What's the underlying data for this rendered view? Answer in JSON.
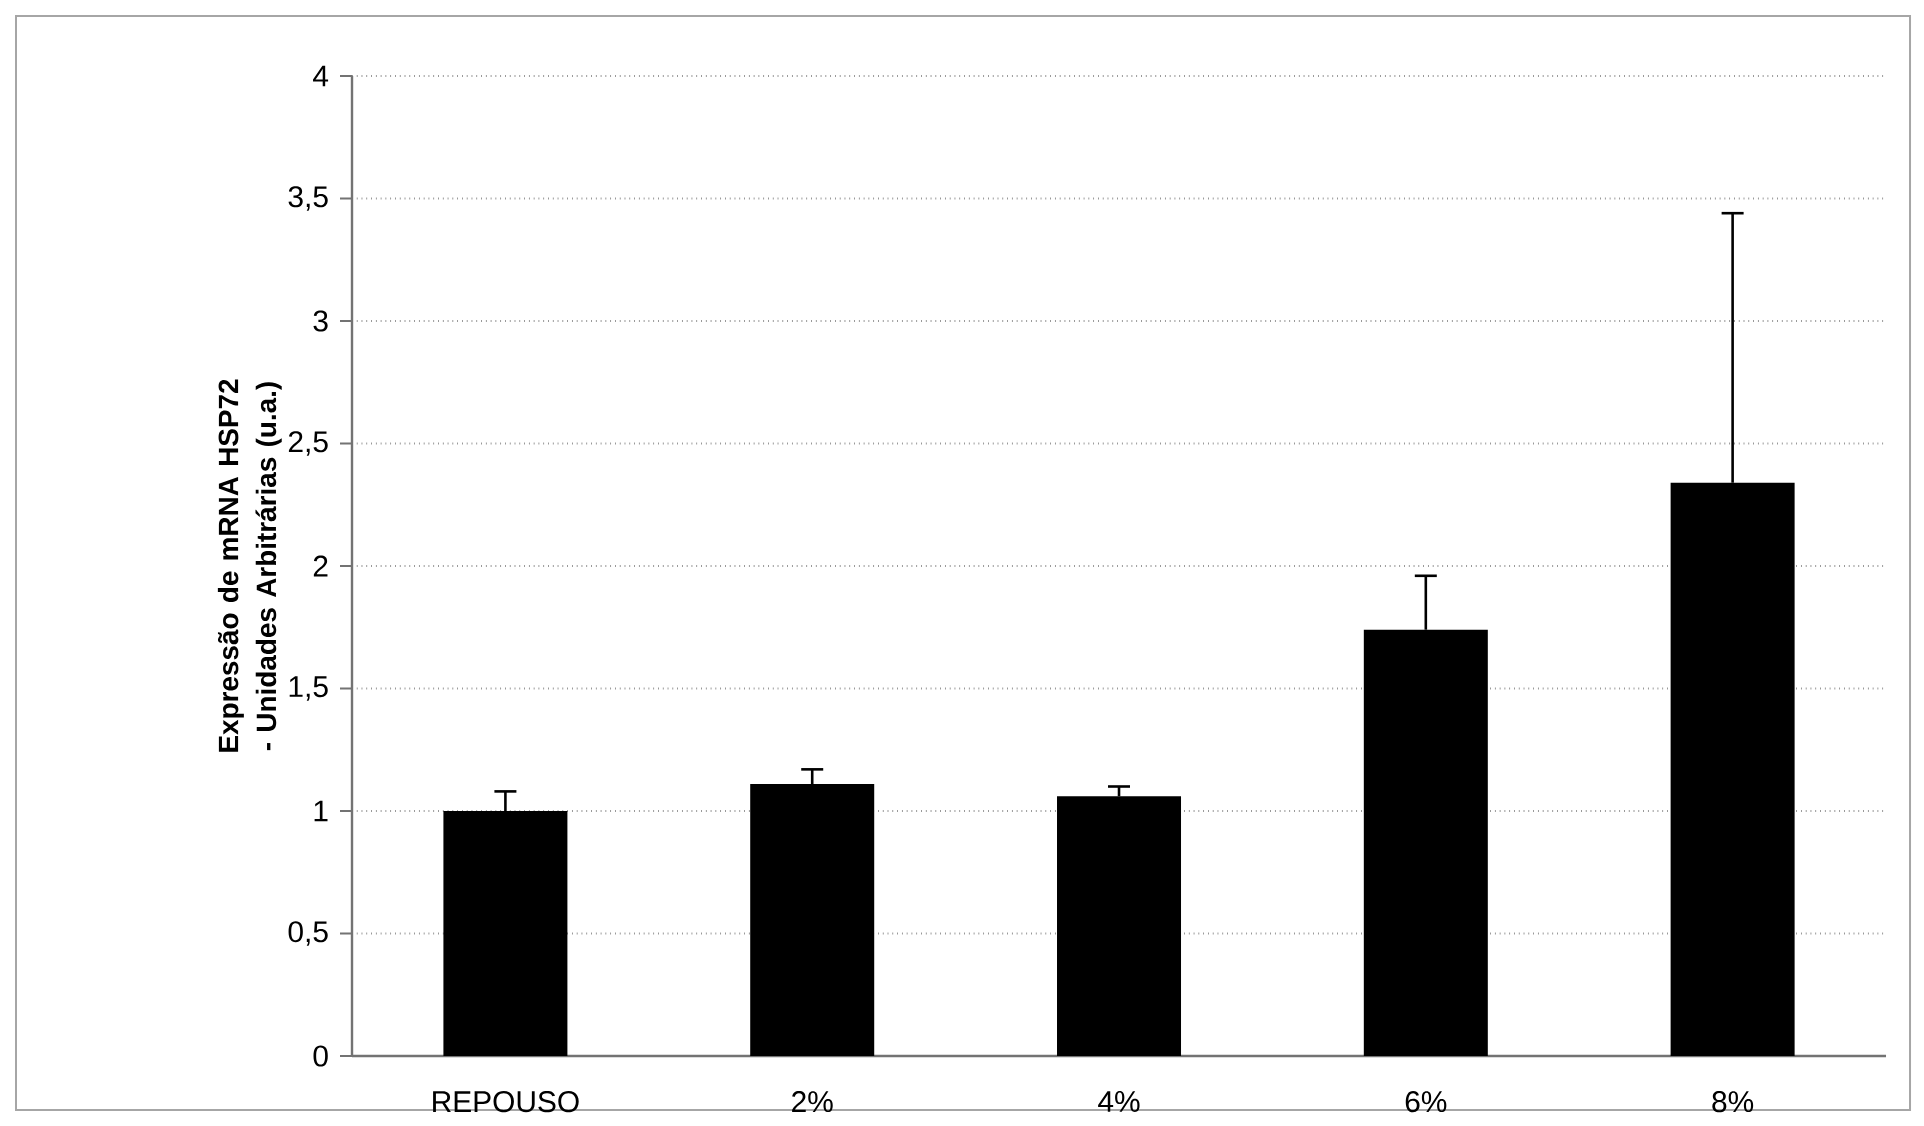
{
  "chart_data": {
    "type": "bar",
    "ylabel": "Expressão de mRNA HSP72 - Unidades Arbitrárias (u.a.)",
    "categories": [
      "REPOUSO",
      "2%",
      "4%",
      "6%",
      "8%"
    ],
    "values": [
      1.0,
      1.11,
      1.06,
      1.74,
      2.34
    ],
    "errors": [
      [
        1.0,
        1.08
      ],
      [
        1.11,
        1.17
      ],
      [
        1.06,
        1.1
      ],
      [
        1.74,
        1.96
      ],
      [
        2.34,
        3.44
      ]
    ],
    "color": "#000000",
    "ylim": [
      0,
      4
    ],
    "yticks": [
      0,
      {
        "value": 0.5,
        "label": "0,5"
      },
      1,
      {
        "value": 1.5,
        "label": "1,5"
      },
      2,
      {
        "value": 2.5,
        "label": "2,5"
      },
      3,
      {
        "value": 3.5,
        "label": "3,5"
      },
      4
    ],
    "grid": "y"
  }
}
